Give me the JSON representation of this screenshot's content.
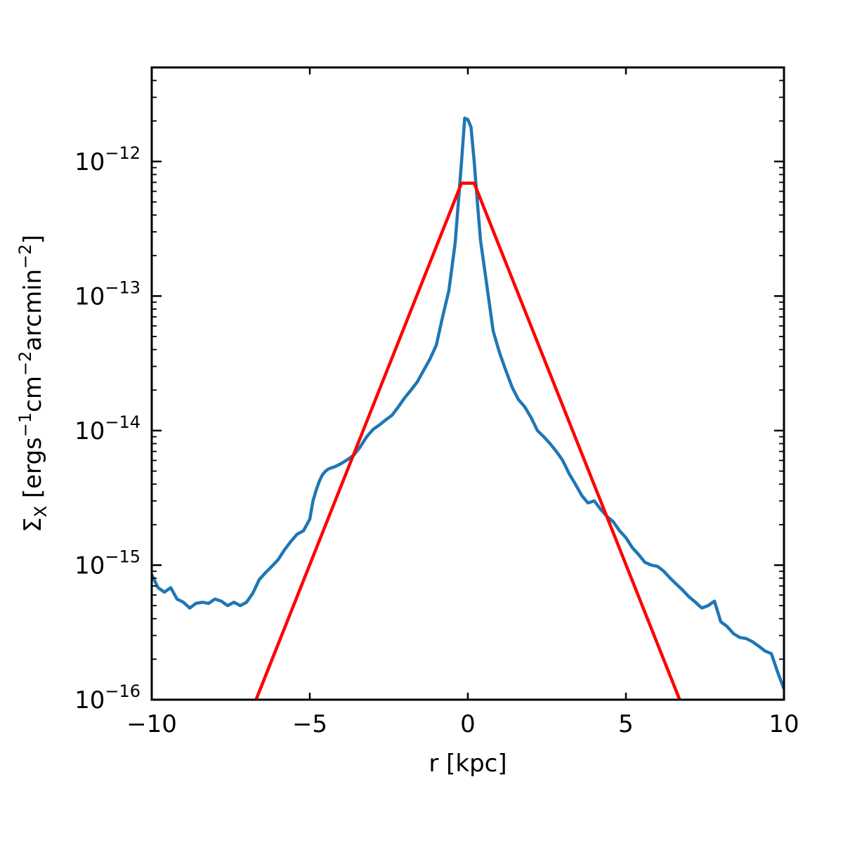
{
  "chart_data": {
    "type": "line",
    "xlabel": "r [kpc]",
    "ylabel_parts": {
      "symbol": "Σ",
      "subscript": "X",
      "bracket_open": " [",
      "unit1": "ergs",
      "exp1": "−1",
      "unit2": "cm",
      "exp2": "−2",
      "unit3": "arcmin",
      "exp3": "−2",
      "bracket_close": "]"
    },
    "xlim": [
      -10,
      10
    ],
    "ylim": [
      1e-16,
      5e-12
    ],
    "yscale": "log",
    "grid": false,
    "x_ticks": [
      {
        "value": -10,
        "label": "−10"
      },
      {
        "value": -5,
        "label": "−5"
      },
      {
        "value": 0,
        "label": "0"
      },
      {
        "value": 5,
        "label": "5"
      },
      {
        "value": 10,
        "label": "10"
      }
    ],
    "y_ticks": [
      {
        "value": 1e-16,
        "base": "10",
        "exp": "−16"
      },
      {
        "value": 1e-15,
        "base": "10",
        "exp": "−15"
      },
      {
        "value": 1e-14,
        "base": "10",
        "exp": "−14"
      },
      {
        "value": 1e-13,
        "base": "10",
        "exp": "−13"
      },
      {
        "value": 1e-12,
        "base": "10",
        "exp": "−12"
      }
    ],
    "series": [
      {
        "color": "#1f77b4",
        "x": [
          -10.0,
          -9.8,
          -9.6,
          -9.4,
          -9.2,
          -9.0,
          -8.8,
          -8.6,
          -8.4,
          -8.2,
          -8.0,
          -7.8,
          -7.6,
          -7.4,
          -7.2,
          -7.0,
          -6.8,
          -6.6,
          -6.4,
          -6.2,
          -6.0,
          -5.8,
          -5.6,
          -5.4,
          -5.2,
          -5.0,
          -4.9,
          -4.8,
          -4.7,
          -4.6,
          -4.5,
          -4.4,
          -4.3,
          -4.2,
          -4.0,
          -3.8,
          -3.6,
          -3.4,
          -3.2,
          -3.0,
          -2.8,
          -2.6,
          -2.4,
          -2.2,
          -2.0,
          -1.8,
          -1.6,
          -1.4,
          -1.2,
          -1.0,
          -0.8,
          -0.6,
          -0.4,
          -0.3,
          -0.2,
          -0.1,
          0.0,
          0.1,
          0.2,
          0.3,
          0.4,
          0.6,
          0.8,
          1.0,
          1.2,
          1.4,
          1.6,
          1.8,
          2.0,
          2.2,
          2.4,
          2.6,
          2.8,
          3.0,
          3.2,
          3.4,
          3.6,
          3.8,
          4.0,
          4.2,
          4.4,
          4.6,
          4.8,
          5.0,
          5.2,
          5.4,
          5.6,
          5.8,
          6.0,
          6.2,
          6.4,
          6.6,
          6.8,
          7.0,
          7.2,
          7.4,
          7.6,
          7.8,
          8.0,
          8.2,
          8.4,
          8.6,
          8.8,
          9.0,
          9.2,
          9.4,
          9.6,
          9.8,
          10.0
        ],
        "y": [
          8.5e-16,
          6.8e-16,
          6.3e-16,
          6.8e-16,
          5.6e-16,
          5.3e-16,
          4.8e-16,
          5.2e-16,
          5.3e-16,
          5.2e-16,
          5.6e-16,
          5.4e-16,
          5e-16,
          5.3e-16,
          5e-16,
          5.3e-16,
          6.2e-16,
          7.8e-16,
          8.8e-16,
          9.8e-16,
          1.1e-15,
          1.3e-15,
          1.5e-15,
          1.7e-15,
          1.8e-15,
          2.2e-15,
          3e-15,
          3.6e-15,
          4.2e-15,
          4.7e-15,
          5e-15,
          5.2e-15,
          5.3e-15,
          5.4e-15,
          5.7e-15,
          6.1e-15,
          6.6e-15,
          7.6e-15,
          9e-15,
          1.02e-14,
          1.1e-14,
          1.2e-14,
          1.3e-14,
          1.5e-14,
          1.75e-14,
          2e-14,
          2.3e-14,
          2.8e-14,
          3.4e-14,
          4.3e-14,
          7e-14,
          1.1e-13,
          2.5e-13,
          5e-13,
          1e-12,
          2.1e-12,
          2.05e-12,
          1.8e-12,
          1e-12,
          5e-13,
          2.6e-13,
          1.2e-13,
          5.5e-14,
          3.8e-14,
          2.8e-14,
          2.1e-14,
          1.7e-14,
          1.5e-14,
          1.25e-14,
          1e-14,
          9e-15,
          8e-15,
          7e-15,
          6e-15,
          4.8e-15,
          4e-15,
          3.3e-15,
          2.9e-15,
          3e-15,
          2.6e-15,
          2.3e-15,
          2.1e-15,
          1.8e-15,
          1.6e-15,
          1.35e-15,
          1.2e-15,
          1.05e-15,
          1e-15,
          9.8e-16,
          9e-16,
          8e-16,
          7.2e-16,
          6.5e-16,
          5.8e-16,
          5.3e-16,
          4.8e-16,
          5e-16,
          5.4e-16,
          3.8e-16,
          3.5e-16,
          3.1e-16,
          2.9e-16,
          2.85e-16,
          2.7e-16,
          2.5e-16,
          2.3e-16,
          2.2e-16,
          1.6e-16,
          1.2e-16
        ]
      },
      {
        "color": "#ff0000",
        "x": [
          -6.7,
          -0.2,
          0.2,
          6.7
        ],
        "y": [
          1e-16,
          6.9e-13,
          6.9e-13,
          1e-16
        ]
      }
    ]
  }
}
